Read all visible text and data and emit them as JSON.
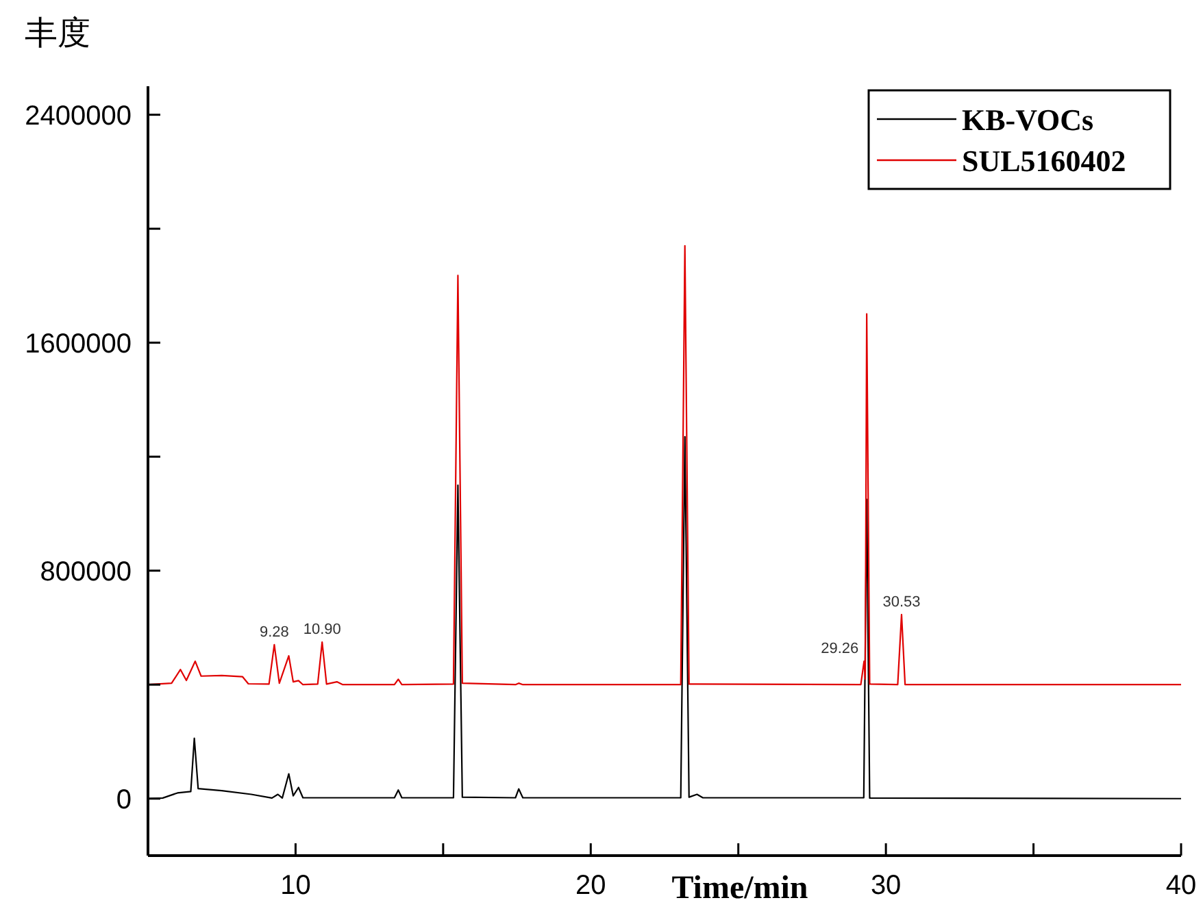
{
  "chart_data": {
    "type": "line",
    "ylabel": "丰度",
    "xlabel": "Time/min",
    "xlim": [
      5,
      40
    ],
    "ylim": [
      -200000,
      2500000
    ],
    "xticks": [
      10,
      {
        "value": 15,
        "label": null
      },
      20,
      {
        "value": 25,
        "label": null
      },
      30,
      {
        "value": 35,
        "label": null
      },
      40
    ],
    "yticks": [
      0,
      {
        "value": 400000,
        "label": null
      },
      800000,
      {
        "value": 1200000,
        "label": null
      },
      1600000,
      {
        "value": 2000000,
        "label": null
      },
      2400000
    ],
    "legend": "top right",
    "grid": false,
    "marker": "none",
    "line_style": "solid",
    "annotations": [
      {
        "text": "9.28",
        "x": 9.28,
        "y": 540000
      },
      {
        "text": "10.90",
        "x": 10.9,
        "y": 549000
      },
      {
        "text": "29.26",
        "x": 29.26,
        "y": 482000
      },
      {
        "text": "30.53",
        "x": 30.53,
        "y": 646000
      }
    ],
    "series": [
      {
        "name": "KB-VOCs",
        "color": "#000000",
        "x": [
          5,
          5.5,
          6.0,
          6.45,
          6.57,
          6.7,
          7.5,
          8.5,
          9.2,
          9.4,
          9.55,
          9.77,
          9.92,
          10.1,
          10.25,
          13.35,
          13.48,
          13.6,
          15.35,
          15.5,
          15.65,
          17.45,
          17.56,
          17.7,
          23.05,
          23.19,
          23.33,
          23.6,
          23.8,
          29.25,
          29.35,
          29.45,
          40
        ],
        "values": [
          0,
          2000,
          20000,
          25000,
          212000,
          35000,
          28000,
          15000,
          2000,
          15000,
          2000,
          87000,
          10000,
          39000,
          3000,
          3000,
          30000,
          3000,
          3000,
          1100000,
          5000,
          3000,
          34000,
          3000,
          3000,
          1270000,
          5000,
          15000,
          3000,
          3000,
          1050000,
          2000,
          0
        ]
      },
      {
        "name": "SUL5160402",
        "color": "#e00000",
        "x": [
          5,
          5.8,
          6.1,
          6.3,
          6.6,
          6.8,
          7.5,
          8.2,
          8.4,
          9.1,
          9.28,
          9.45,
          9.77,
          9.92,
          10.1,
          10.25,
          10.75,
          10.9,
          11.05,
          11.4,
          11.6,
          13.35,
          13.48,
          13.6,
          15.35,
          15.5,
          15.65,
          17.45,
          17.56,
          17.7,
          23.05,
          23.19,
          23.33,
          29.15,
          29.26,
          29.3,
          29.35,
          29.45,
          30.4,
          30.53,
          30.65,
          40
        ],
        "values": [
          400000,
          405000,
          453000,
          415000,
          482000,
          430000,
          432000,
          428000,
          403000,
          402000,
          540000,
          405000,
          501000,
          410000,
          414000,
          400000,
          402000,
          549000,
          402000,
          410000,
          400000,
          400000,
          419000,
          400000,
          402000,
          1836000,
          405000,
          400000,
          405000,
          400000,
          400000,
          1940000,
          402000,
          400000,
          482000,
          420000,
          1701000,
          402000,
          400000,
          646000,
          400000,
          400000
        ]
      }
    ]
  }
}
